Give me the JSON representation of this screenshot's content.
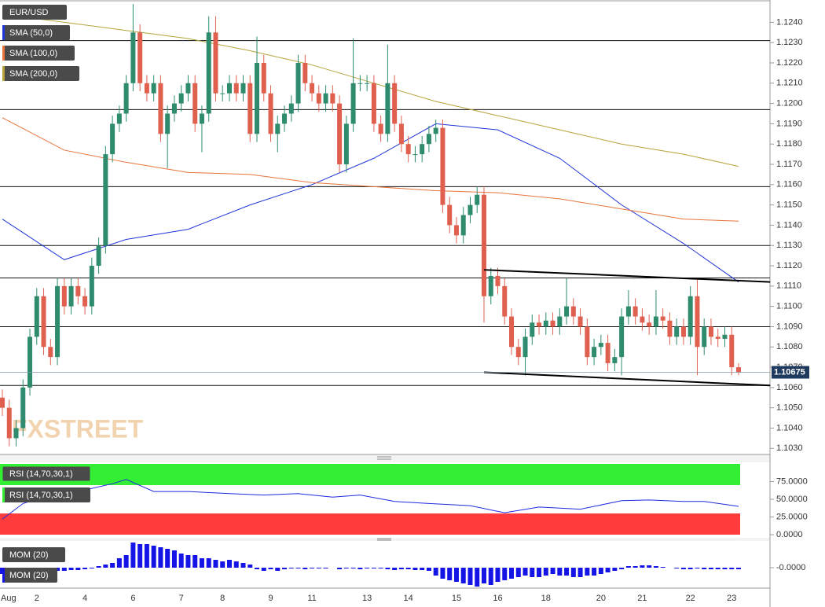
{
  "chart_data": [
    {
      "type": "candlestick",
      "title": "EUR/USD",
      "watermark": "FXSTREET",
      "categories": [
        "Aug",
        null,
        null,
        null,
        null,
        "2",
        null,
        null,
        null,
        null,
        null,
        null,
        "4",
        null,
        null,
        null,
        null,
        null,
        null,
        "6",
        null,
        null,
        null,
        null,
        null,
        null,
        "7",
        null,
        null,
        null,
        null,
        null,
        "8",
        null,
        null,
        null,
        null,
        null,
        null,
        "9",
        null,
        null,
        null,
        null,
        null,
        "11",
        null,
        null,
        null,
        null,
        null,
        null,
        null,
        "13",
        null,
        null,
        null,
        null,
        null,
        "14",
        null,
        null,
        null,
        null,
        null,
        null,
        "15",
        null,
        null,
        null,
        null,
        null,
        "16",
        null,
        null,
        null,
        null,
        null,
        null,
        "18",
        null,
        null,
        null,
        null,
        null,
        null,
        null,
        "20",
        null,
        null,
        null,
        null,
        null,
        "21",
        null,
        null,
        null,
        null,
        null,
        null,
        "22",
        null,
        null,
        null,
        null,
        null,
        "23",
        null
      ],
      "open": [
        1.1055,
        1.105,
        1.1035,
        1.104,
        1.106,
        1.1085,
        1.1105,
        1.108,
        1.1075,
        1.111,
        1.11,
        1.111,
        1.1105,
        1.11,
        1.112,
        1.113,
        1.1175,
        1.119,
        1.1195,
        1.121,
        1.1235,
        1.121,
        1.1205,
        1.121,
        1.1185,
        1.1195,
        1.12,
        1.1205,
        1.121,
        1.119,
        1.1195,
        1.1235,
        1.1205,
        1.1205,
        1.121,
        1.1205,
        1.121,
        1.1185,
        1.122,
        1.1205,
        1.1185,
        1.119,
        1.1195,
        1.12,
        1.122,
        1.121,
        1.1205,
        1.12,
        1.1205,
        1.12,
        1.117,
        1.119,
        1.121,
        1.121,
        1.121,
        1.119,
        1.1185,
        1.121,
        1.119,
        1.118,
        1.1175,
        1.1175,
        1.118,
        1.1185,
        1.1188,
        1.115,
        1.114,
        1.1135,
        1.1145,
        1.115,
        1.1155,
        1.1105,
        1.1115,
        1.111,
        1.1095,
        1.108,
        1.1075,
        1.1085,
        1.1092,
        1.109,
        1.1093,
        1.109,
        1.1095,
        1.11,
        1.1095,
        1.109,
        1.1075,
        1.108,
        1.1082,
        1.1072,
        1.1075,
        1.1095,
        1.11,
        1.1095,
        1.1092,
        1.109,
        1.1095,
        1.1093,
        1.1085,
        1.109,
        1.1085,
        1.1105,
        1.108,
        1.109,
        1.1085,
        1.1084,
        1.1086,
        1.107
      ],
      "high": [
        1.1059,
        1.1054,
        1.1044,
        1.1064,
        1.1089,
        1.1109,
        1.1109,
        1.1084,
        1.1114,
        1.1114,
        1.1114,
        1.1114,
        1.1109,
        1.1124,
        1.1134,
        1.1179,
        1.1194,
        1.1199,
        1.1214,
        1.1249,
        1.1239,
        1.1214,
        1.1214,
        1.1214,
        1.1199,
        1.1204,
        1.1209,
        1.1214,
        1.1214,
        1.1199,
        1.1243,
        1.1243,
        1.1209,
        1.1214,
        1.1214,
        1.1214,
        1.1214,
        1.1233,
        1.1224,
        1.1209,
        1.1194,
        1.1199,
        1.1204,
        1.1224,
        1.1224,
        1.1214,
        1.1209,
        1.1209,
        1.1209,
        1.1204,
        1.1194,
        1.1232,
        1.1214,
        1.1214,
        1.1214,
        1.1194,
        1.1229,
        1.1214,
        1.1194,
        1.1184,
        1.1179,
        1.1184,
        1.1189,
        1.1192,
        1.1192,
        1.1154,
        1.1144,
        1.1149,
        1.1154,
        1.1159,
        1.1159,
        1.1119,
        1.1119,
        1.1114,
        1.1099,
        1.1084,
        1.1089,
        1.1096,
        1.1096,
        1.1097,
        1.1097,
        1.1099,
        1.1114,
        1.1104,
        1.1099,
        1.1094,
        1.1084,
        1.1086,
        1.1086,
        1.1079,
        1.1099,
        1.1108,
        1.1104,
        1.1099,
        1.1096,
        1.1108,
        1.1099,
        1.1097,
        1.1094,
        1.1094,
        1.111,
        1.1113,
        1.1094,
        1.1094,
        1.1089,
        1.109,
        1.109,
        1.1072
      ],
      "low": [
        1.1046,
        1.1031,
        1.1031,
        1.1036,
        1.1056,
        1.1081,
        1.1076,
        1.1071,
        1.1071,
        1.1096,
        1.1096,
        1.1101,
        1.1096,
        1.1096,
        1.1116,
        1.1126,
        1.1171,
        1.1186,
        1.1191,
        1.1206,
        1.1206,
        1.1201,
        1.1201,
        1.1181,
        1.1168,
        1.1191,
        1.1196,
        1.1201,
        1.1186,
        1.1176,
        1.1191,
        1.1201,
        1.1201,
        1.1201,
        1.1201,
        1.1201,
        1.1181,
        1.1181,
        1.1201,
        1.1181,
        1.1176,
        1.1186,
        1.1191,
        1.1196,
        1.1206,
        1.1201,
        1.1196,
        1.1196,
        1.1196,
        1.1166,
        1.1166,
        1.1186,
        1.1206,
        1.1206,
        1.1186,
        1.1181,
        1.1181,
        1.1186,
        1.1176,
        1.1171,
        1.1171,
        1.1171,
        1.1176,
        1.1181,
        1.1146,
        1.1136,
        1.1131,
        1.1131,
        1.1141,
        1.1146,
        1.1092,
        1.1101,
        1.1106,
        1.1091,
        1.1076,
        1.1071,
        1.1066,
        1.1081,
        1.1086,
        1.1086,
        1.1086,
        1.1086,
        1.1091,
        1.1091,
        1.1086,
        1.1071,
        1.1071,
        1.1076,
        1.1068,
        1.1068,
        1.1066,
        1.1091,
        1.1091,
        1.1088,
        1.1086,
        1.1086,
        1.1089,
        1.1081,
        1.1081,
        1.1081,
        1.1081,
        1.1066,
        1.1076,
        1.1081,
        1.108,
        1.108,
        1.1066,
        1.1066
      ],
      "close": [
        1.105,
        1.1035,
        1.104,
        1.106,
        1.1085,
        1.1105,
        1.108,
        1.1075,
        1.111,
        1.11,
        1.111,
        1.1105,
        1.11,
        1.112,
        1.113,
        1.1175,
        1.119,
        1.1195,
        1.121,
        1.1235,
        1.121,
        1.1205,
        1.121,
        1.1185,
        1.1195,
        1.12,
        1.1205,
        1.121,
        1.119,
        1.1195,
        1.1235,
        1.1205,
        1.1205,
        1.121,
        1.1205,
        1.121,
        1.1185,
        1.122,
        1.1205,
        1.1185,
        1.119,
        1.1195,
        1.12,
        1.122,
        1.121,
        1.1205,
        1.12,
        1.1205,
        1.12,
        1.117,
        1.119,
        1.121,
        1.121,
        1.121,
        1.119,
        1.1185,
        1.121,
        1.119,
        1.118,
        1.1175,
        1.1175,
        1.118,
        1.1185,
        1.1188,
        1.115,
        1.114,
        1.1135,
        1.1145,
        1.115,
        1.1155,
        1.1105,
        1.1115,
        1.111,
        1.1095,
        1.108,
        1.1075,
        1.1085,
        1.1092,
        1.109,
        1.1093,
        1.109,
        1.1095,
        1.11,
        1.1095,
        1.109,
        1.1075,
        1.108,
        1.1082,
        1.1072,
        1.1075,
        1.1095,
        1.11,
        1.1095,
        1.1092,
        1.109,
        1.1095,
        1.1093,
        1.1085,
        1.109,
        1.1085,
        1.1105,
        1.108,
        1.109,
        1.1085,
        1.1084,
        1.1086,
        1.107,
        1.10675
      ],
      "up_color": "#2e8b6e",
      "down_color": "#e0604f",
      "series": [
        {
          "name": "SMA (50,0)",
          "color": "#1f35d8",
          "x": [
            0,
            9,
            18,
            27,
            36,
            45,
            54,
            63,
            72,
            81,
            90,
            99,
            107
          ],
          "values": [
            1.1143,
            1.1123,
            1.1133,
            1.1138,
            1.115,
            1.116,
            1.1173,
            1.119,
            1.1187,
            1.1173,
            1.115,
            1.1131,
            1.1112
          ]
        },
        {
          "name": "SMA (100,0)",
          "color": "#e8743b",
          "x": [
            0,
            9,
            18,
            27,
            36,
            45,
            54,
            63,
            72,
            81,
            90,
            99,
            107
          ],
          "values": [
            1.1193,
            1.1177,
            1.1171,
            1.1166,
            1.1165,
            1.1161,
            1.1159,
            1.1157,
            1.1156,
            1.1153,
            1.1148,
            1.1143,
            1.1142
          ]
        },
        {
          "name": "SMA (200,0)",
          "color": "#b5a33a",
          "x": [
            0,
            9,
            18,
            27,
            36,
            45,
            54,
            63,
            72,
            81,
            90,
            99,
            107
          ],
          "values": [
            1.1244,
            1.124,
            1.1236,
            1.1232,
            1.1226,
            1.1219,
            1.121,
            1.1201,
            1.1194,
            1.1187,
            1.118,
            1.1175,
            1.1169
          ]
        }
      ],
      "levels": [
        1.1231,
        1.1197,
        1.1159,
        1.113,
        1.1114,
        1.109,
        1.1061
      ],
      "trendlines": [
        {
          "x": [
            70,
            111.6
          ],
          "values": [
            1.1118,
            1.1112
          ]
        },
        {
          "x": [
            70,
            111.6
          ],
          "values": [
            1.10675,
            1.1061
          ]
        }
      ],
      "last_price": 1.10675,
      "last_price_color": "#1f3a5f",
      "ylim": [
        1.1027,
        1.1251
      ],
      "yticks": [
        {
          "value": 1.103,
          "label": "1.1030"
        },
        {
          "value": 1.104,
          "label": "1.1040"
        },
        {
          "value": 1.105,
          "label": "1.1050"
        },
        {
          "value": 1.106,
          "label": "1.1060"
        },
        {
          "value": 1.107,
          "label": "1.1070"
        },
        {
          "value": 1.108,
          "label": "1.1080"
        },
        {
          "value": 1.109,
          "label": "1.1090"
        },
        {
          "value": 1.11,
          "label": "1.1100"
        },
        {
          "value": 1.111,
          "label": "1.1110"
        },
        {
          "value": 1.112,
          "label": "1.1120"
        },
        {
          "value": 1.113,
          "label": "1.1130"
        },
        {
          "value": 1.114,
          "label": "1.1140"
        },
        {
          "value": 1.115,
          "label": "1.1150"
        },
        {
          "value": 1.116,
          "label": "1.1160"
        },
        {
          "value": 1.117,
          "label": "1.1170"
        },
        {
          "value": 1.118,
          "label": "1.1180"
        },
        {
          "value": 1.119,
          "label": "1.1190"
        },
        {
          "value": 1.12,
          "label": "1.1200"
        },
        {
          "value": 1.121,
          "label": "1.1210"
        },
        {
          "value": 1.122,
          "label": "1.1220"
        },
        {
          "value": 1.123,
          "label": "1.1230"
        },
        {
          "value": 1.124,
          "label": "1.1240"
        }
      ]
    },
    {
      "type": "line",
      "title": "RSI (14,70,30,1)",
      "series": [
        {
          "name": "RSI (14,70,30,1)",
          "color": "#1e2be0",
          "x": [
            0,
            3,
            7,
            11,
            16,
            18,
            22,
            27,
            33,
            38,
            43,
            48,
            52,
            57,
            62,
            68,
            73,
            78,
            84,
            90,
            94,
            99,
            102,
            107
          ],
          "values": [
            22,
            44,
            56,
            61,
            72,
            78,
            61,
            61,
            58,
            56,
            58,
            53,
            56,
            47,
            44,
            41,
            31,
            39,
            36,
            48,
            49,
            47,
            47,
            40
          ]
        }
      ],
      "upper_band": [
        70,
        100
      ],
      "upper_band_color": "#33ee33",
      "lower_band": [
        0,
        30
      ],
      "lower_band_color": "#ff3b3b",
      "ylim": [
        -4.4,
        102.2
      ],
      "yticks": [
        {
          "value": 0,
          "label": "0.0000"
        },
        {
          "value": 25,
          "label": "25.0000"
        },
        {
          "value": 50,
          "label": "50.0000"
        },
        {
          "value": 75,
          "label": "75.0000"
        }
      ]
    },
    {
      "type": "bar",
      "title": "MOM (20)",
      "series": [
        {
          "name": "MOM (20)",
          "color": "#1414e6",
          "values": [
            -0.0008,
            -0.0006,
            -0.0006,
            -0.0005,
            -0.0005,
            -0.0006,
            -0.0006,
            -0.0005,
            -0.0004,
            -0.0004,
            -0.0003,
            -0.0003,
            -0.0002,
            -0.0001,
            0.0002,
            0.0004,
            0.0006,
            0.0012,
            0.0016,
            0.0032,
            0.003,
            0.003,
            0.0028,
            0.0026,
            0.0024,
            0.0022,
            0.0018,
            0.0016,
            0.0016,
            0.0012,
            0.0012,
            0.001,
            0.0008,
            0.001,
            0.0008,
            0.0006,
            0.0004,
            -0.0002,
            -0.0004,
            -0.0002,
            -0.0004,
            -0.0002,
            -0.0001,
            -0.0001,
            -0.0002,
            -0.0001,
            -0.0001,
            -0.0001,
            0,
            -0.0002,
            -0.0001,
            -0.0001,
            -0.0002,
            -0.0001,
            -0.0001,
            -0.0001,
            -0.0002,
            -0.0003,
            -0.0002,
            -0.0002,
            -0.0003,
            -0.0003,
            -0.0004,
            -0.001,
            -0.0014,
            -0.0016,
            -0.0018,
            -0.002,
            -0.0022,
            -0.0024,
            -0.002,
            -0.0022,
            -0.0018,
            -0.0016,
            -0.0014,
            -0.0012,
            -0.001,
            -0.0012,
            -0.0012,
            -0.001,
            -0.0008,
            -0.001,
            -0.001,
            -0.0012,
            -0.0012,
            -0.001,
            -0.001,
            -0.0008,
            -0.0006,
            -0.0004,
            -0.0002,
            0.0002,
            0.0002,
            0.0003,
            0.0003,
            0.0002,
            0.0001,
            0,
            -0.0001,
            -0.0002,
            -0.0002,
            -0.0001,
            -0.0002,
            -0.0002,
            -0.0002,
            -0.0002,
            -0.0002,
            -0.0002
          ]
        }
      ],
      "ylim": [
        -0.0026,
        0.0034
      ],
      "yticks": [
        {
          "value": 0,
          "label": "-0.0000"
        }
      ]
    }
  ]
}
